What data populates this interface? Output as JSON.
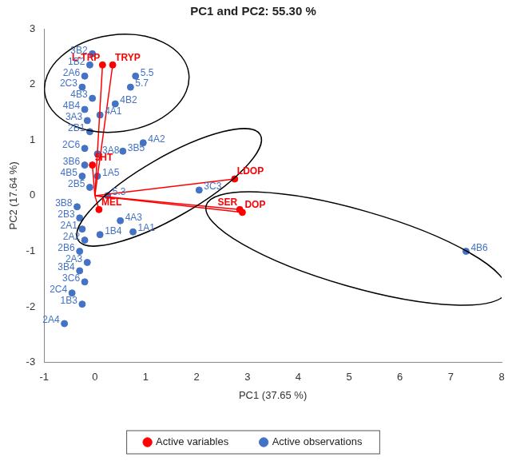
{
  "chart_data": {
    "type": "scatter",
    "title": "PC1 and PC2: 55.30 %",
    "x_label": "PC1 (37.65 %)",
    "y_label": "PC2 (17.64 %)",
    "xlim": [
      -1,
      8
    ],
    "xticks": [
      -1,
      0,
      1,
      2,
      3,
      4,
      5,
      6,
      7,
      8
    ],
    "ylim": [
      -3,
      3
    ],
    "yticks": [
      -3,
      -2,
      -1,
      0,
      1,
      2,
      3
    ],
    "grid": false,
    "legend": "bottom",
    "series": [
      {
        "name": "Active variables",
        "type": "vector",
        "color": "#ff0000",
        "marker": "circle",
        "labels": [
          "L-TRP",
          "TRYP",
          "5HT",
          "MEL",
          "LDOP",
          "SER",
          "DOP"
        ],
        "x": [
          0.15,
          0.35,
          -0.05,
          0.08,
          2.75,
          2.85,
          2.9
        ],
        "y": [
          2.35,
          2.35,
          0.55,
          -0.25,
          0.3,
          -0.25,
          -0.3
        ]
      },
      {
        "name": "Active observations",
        "type": "scatter",
        "color": "#4472c4",
        "marker": "circle",
        "labels": [
          "3B2",
          "1B2",
          "2A6",
          "2C3",
          "4B3",
          "4B2",
          "5.5",
          "5.7",
          "4B4",
          "3A3",
          "4A1",
          "2B1",
          "2C6",
          "3B5",
          "4A2",
          "3A8",
          "1A5",
          "3B6",
          "4B5",
          "2B5",
          "3C3",
          "5.3",
          "3B8",
          "2B3",
          "2A1",
          "4A3",
          "1B4",
          "1A1",
          "2A2",
          "2B6",
          "2A3",
          "3B4",
          "3C6",
          "2C4",
          "1B3",
          "2A4",
          "4B6"
        ],
        "x": [
          -0.05,
          -0.1,
          -0.2,
          -0.25,
          -0.05,
          0.4,
          0.8,
          0.7,
          -0.2,
          -0.15,
          0.1,
          -0.1,
          -0.2,
          0.55,
          0.95,
          0.05,
          0.05,
          -0.2,
          -0.25,
          -0.1,
          2.05,
          0.25,
          -0.35,
          -0.3,
          -0.25,
          0.5,
          0.1,
          0.75,
          -0.2,
          -0.3,
          -0.15,
          -0.3,
          -0.2,
          -0.45,
          -0.25,
          -0.6,
          7.3
        ],
        "y": [
          2.55,
          2.35,
          2.15,
          1.95,
          1.75,
          1.65,
          2.15,
          1.95,
          1.55,
          1.35,
          1.45,
          1.15,
          0.85,
          0.8,
          0.95,
          0.75,
          0.35,
          0.55,
          0.35,
          0.15,
          0.1,
          0.0,
          -0.2,
          -0.4,
          -0.6,
          -0.45,
          -0.7,
          -0.65,
          -0.8,
          -1.0,
          -1.2,
          -1.35,
          -1.55,
          -1.75,
          -1.95,
          -2.3,
          -1.0
        ]
      }
    ],
    "ellipses": [
      {
        "cx": 0.43,
        "cy": 2.02,
        "rx": 1.43,
        "ry": 0.87,
        "angle": -8
      },
      {
        "cx": 1.46,
        "cy": 0.15,
        "rx": 2.07,
        "ry": 0.54,
        "angle": -30
      },
      {
        "cx": 5.14,
        "cy": -0.95,
        "rx": 3.07,
        "ry": 0.69,
        "angle": 16
      }
    ]
  }
}
